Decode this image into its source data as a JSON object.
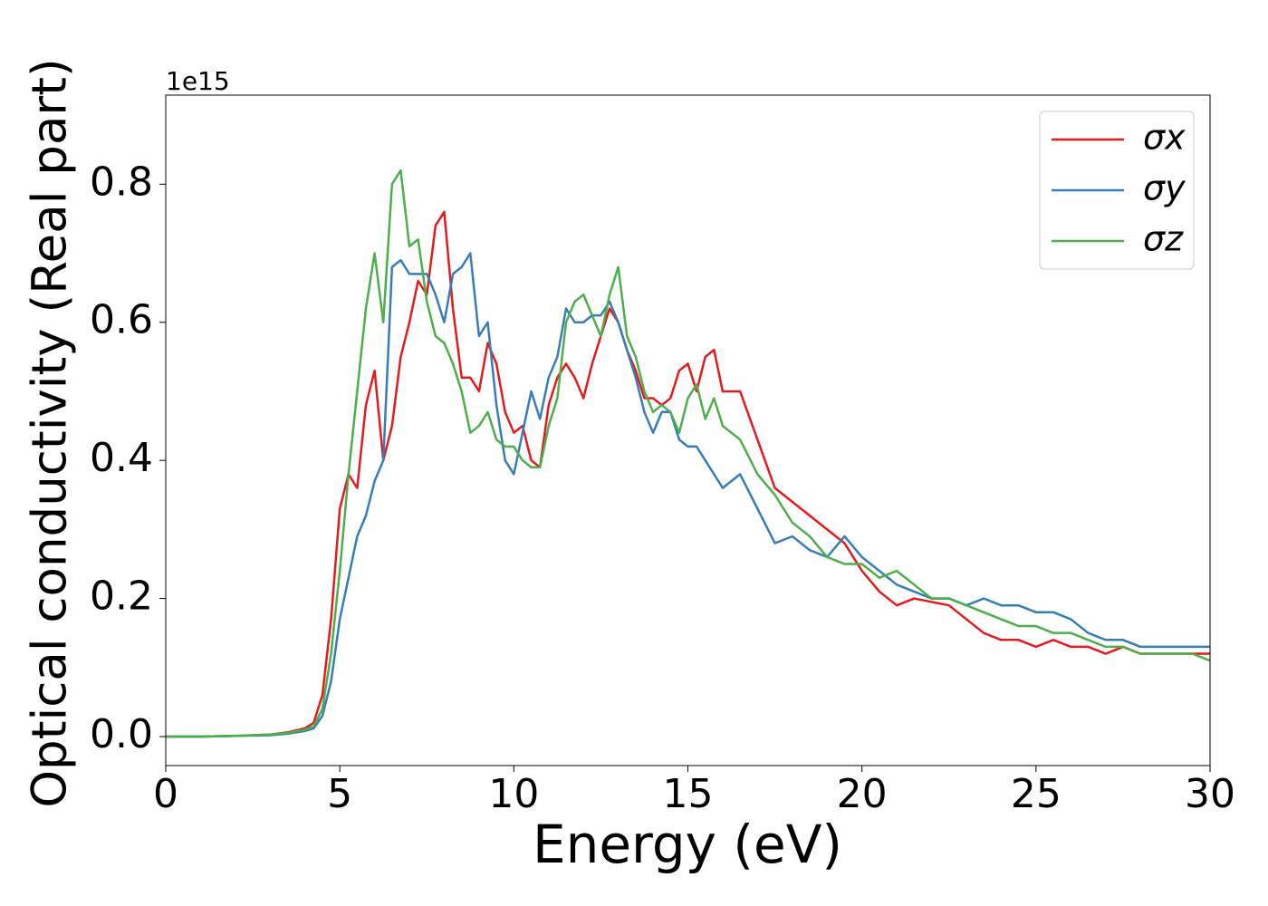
{
  "chart_data": {
    "type": "line",
    "xlabel": "Energy (eV)",
    "ylabel": "Optical conductivity (Real part)",
    "y_offset_label": "1e15",
    "x": [
      0,
      1,
      2,
      3,
      3.5,
      4,
      4.25,
      4.5,
      4.75,
      5,
      5.25,
      5.5,
      5.75,
      6,
      6.25,
      6.5,
      6.75,
      7,
      7.25,
      7.5,
      7.75,
      8,
      8.25,
      8.5,
      8.75,
      9,
      9.25,
      9.5,
      9.75,
      10,
      10.25,
      10.5,
      10.75,
      11,
      11.25,
      11.5,
      11.75,
      12,
      12.25,
      12.5,
      12.75,
      13,
      13.25,
      13.5,
      13.75,
      14,
      14.25,
      14.5,
      14.75,
      15,
      15.25,
      15.5,
      15.75,
      16,
      16.5,
      17,
      17.5,
      18,
      18.5,
      19,
      19.5,
      20,
      20.5,
      21,
      21.5,
      22,
      22.5,
      23,
      23.5,
      24,
      24.5,
      25,
      25.5,
      26,
      26.5,
      27,
      27.5,
      28,
      28.5,
      29,
      29.5,
      30
    ],
    "series": [
      {
        "name": "σx",
        "color": "#e41a1c",
        "values": [
          0,
          0,
          0.001,
          0.003,
          0.006,
          0.012,
          0.02,
          0.06,
          0.17,
          0.33,
          0.38,
          0.36,
          0.48,
          0.53,
          0.4,
          0.45,
          0.55,
          0.6,
          0.66,
          0.64,
          0.74,
          0.76,
          0.62,
          0.52,
          0.52,
          0.5,
          0.57,
          0.54,
          0.47,
          0.44,
          0.45,
          0.4,
          0.39,
          0.48,
          0.52,
          0.54,
          0.52,
          0.49,
          0.54,
          0.58,
          0.62,
          0.6,
          0.56,
          0.53,
          0.49,
          0.49,
          0.48,
          0.49,
          0.53,
          0.54,
          0.5,
          0.55,
          0.56,
          0.5,
          0.5,
          0.43,
          0.36,
          0.34,
          0.32,
          0.3,
          0.28,
          0.24,
          0.21,
          0.19,
          0.2,
          0.195,
          0.19,
          0.17,
          0.15,
          0.14,
          0.14,
          0.13,
          0.14,
          0.13,
          0.13,
          0.12,
          0.13,
          0.12,
          0.12,
          0.12,
          0.12,
          0.12
        ]
      },
      {
        "name": "σy",
        "color": "#377eb8",
        "values": [
          0,
          0,
          0.001,
          0.002,
          0.004,
          0.008,
          0.012,
          0.03,
          0.08,
          0.17,
          0.23,
          0.29,
          0.32,
          0.37,
          0.4,
          0.68,
          0.69,
          0.67,
          0.67,
          0.67,
          0.64,
          0.6,
          0.67,
          0.68,
          0.7,
          0.58,
          0.6,
          0.48,
          0.4,
          0.38,
          0.44,
          0.5,
          0.46,
          0.52,
          0.55,
          0.62,
          0.6,
          0.6,
          0.61,
          0.61,
          0.63,
          0.6,
          0.56,
          0.52,
          0.47,
          0.44,
          0.47,
          0.47,
          0.43,
          0.42,
          0.42,
          0.4,
          0.38,
          0.36,
          0.38,
          0.33,
          0.28,
          0.29,
          0.27,
          0.26,
          0.29,
          0.26,
          0.24,
          0.22,
          0.21,
          0.2,
          0.2,
          0.19,
          0.2,
          0.19,
          0.19,
          0.18,
          0.18,
          0.17,
          0.15,
          0.14,
          0.14,
          0.13,
          0.13,
          0.13,
          0.13,
          0.13
        ]
      },
      {
        "name": "σz",
        "color": "#4daf4a",
        "values": [
          0,
          0,
          0.001,
          0.003,
          0.005,
          0.01,
          0.015,
          0.04,
          0.12,
          0.24,
          0.38,
          0.5,
          0.62,
          0.7,
          0.6,
          0.8,
          0.82,
          0.71,
          0.72,
          0.63,
          0.58,
          0.57,
          0.54,
          0.5,
          0.44,
          0.45,
          0.47,
          0.43,
          0.42,
          0.42,
          0.4,
          0.39,
          0.39,
          0.45,
          0.49,
          0.6,
          0.63,
          0.64,
          0.61,
          0.58,
          0.64,
          0.68,
          0.58,
          0.55,
          0.5,
          0.47,
          0.48,
          0.47,
          0.44,
          0.49,
          0.51,
          0.46,
          0.49,
          0.45,
          0.43,
          0.38,
          0.35,
          0.31,
          0.29,
          0.26,
          0.25,
          0.25,
          0.23,
          0.24,
          0.22,
          0.2,
          0.2,
          0.19,
          0.18,
          0.17,
          0.16,
          0.16,
          0.15,
          0.15,
          0.14,
          0.13,
          0.13,
          0.12,
          0.12,
          0.12,
          0.12,
          0.11
        ]
      }
    ],
    "xlim": [
      0,
      30
    ],
    "xticks": [
      0,
      5,
      10,
      15,
      20,
      25,
      30
    ],
    "ylim": [
      -0.042,
      0.929
    ],
    "yticks": [
      {
        "value": 0,
        "label": "0.0"
      },
      0.2,
      0.4,
      0.6,
      0.8
    ],
    "grid": false,
    "legend": "upper right"
  }
}
